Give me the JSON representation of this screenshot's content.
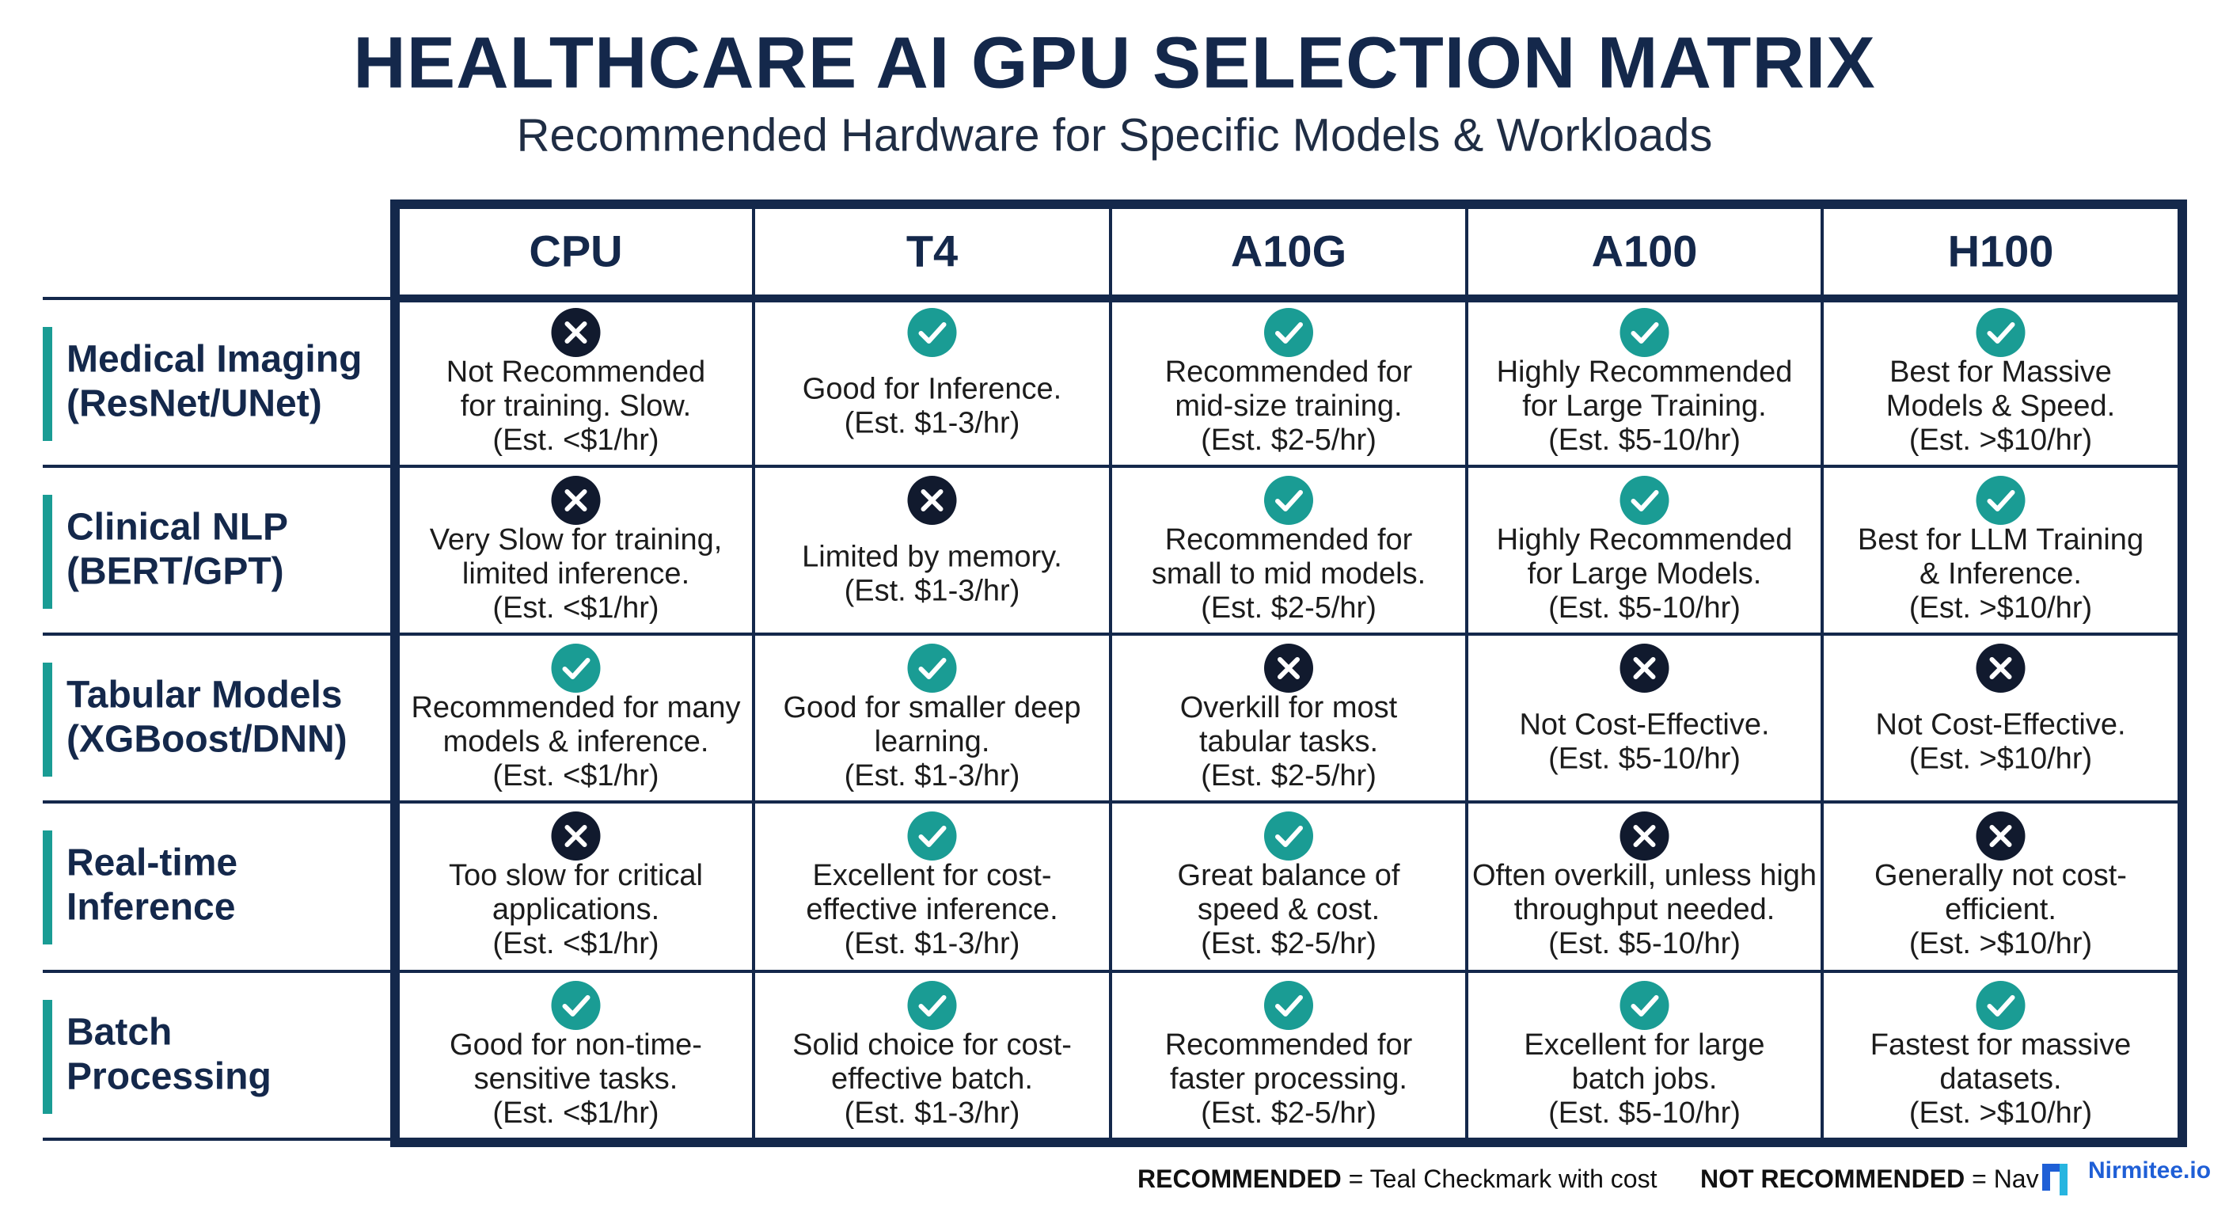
{
  "header": {
    "title": "HEALTHCARE AI GPU SELECTION MATRIX",
    "subtitle": "Recommended Hardware for Specific Models & Workloads"
  },
  "table": {
    "columns": [
      "CPU",
      "T4",
      "A10G",
      "A100",
      "H100"
    ],
    "rows": [
      {
        "label": [
          "Medical Imaging",
          "(ResNet/UNet)"
        ],
        "cells": [
          {
            "status": "not_recommended",
            "text": [
              "Not Recommended",
              "for training. Slow.",
              "(Est. <$1/hr)"
            ]
          },
          {
            "status": "recommended",
            "text": [
              "Good for Inference.",
              "(Est. $1-3/hr)"
            ]
          },
          {
            "status": "recommended",
            "text": [
              "Recommended for",
              "mid-size training.",
              "(Est. $2-5/hr)"
            ]
          },
          {
            "status": "recommended",
            "text": [
              "Highly Recommended",
              "for Large Training.",
              "(Est. $5-10/hr)"
            ]
          },
          {
            "status": "recommended",
            "text": [
              "Best for Massive",
              "Models & Speed.",
              "(Est. >$10/hr)"
            ]
          }
        ]
      },
      {
        "label": [
          "Clinical NLP",
          "(BERT/GPT)"
        ],
        "cells": [
          {
            "status": "not_recommended",
            "text": [
              "Very Slow for training,",
              "limited inference.",
              "(Est. <$1/hr)"
            ]
          },
          {
            "status": "not_recommended",
            "text": [
              "Limited by memory.",
              "(Est. $1-3/hr)"
            ]
          },
          {
            "status": "recommended",
            "text": [
              "Recommended for",
              "small to mid models.",
              "(Est. $2-5/hr)"
            ]
          },
          {
            "status": "recommended",
            "text": [
              "Highly Recommended",
              "for Large Models.",
              "(Est. $5-10/hr)"
            ]
          },
          {
            "status": "recommended",
            "text": [
              "Best for LLM Training",
              "& Inference.",
              "(Est. >$10/hr)"
            ]
          }
        ]
      },
      {
        "label": [
          "Tabular Models",
          "(XGBoost/DNN)"
        ],
        "cells": [
          {
            "status": "recommended",
            "text": [
              "Recommended for many",
              "models & inference.",
              "(Est. <$1/hr)"
            ]
          },
          {
            "status": "recommended",
            "text": [
              "Good for smaller deep",
              "learning.",
              "(Est. $1-3/hr)"
            ]
          },
          {
            "status": "not_recommended",
            "text": [
              "Overkill for most",
              "tabular tasks.",
              "(Est. $2-5/hr)"
            ]
          },
          {
            "status": "not_recommended",
            "text": [
              "Not Cost-Effective.",
              "(Est. $5-10/hr)"
            ]
          },
          {
            "status": "not_recommended",
            "text": [
              "Not Cost-Effective.",
              "(Est. >$10/hr)"
            ]
          }
        ]
      },
      {
        "label": [
          "Real-time",
          "Inference"
        ],
        "cells": [
          {
            "status": "not_recommended",
            "text": [
              "Too slow for critical",
              "applications.",
              "(Est. <$1/hr)"
            ]
          },
          {
            "status": "recommended",
            "text": [
              "Excellent for cost-",
              "effective inference.",
              "(Est. $1-3/hr)"
            ]
          },
          {
            "status": "recommended",
            "text": [
              "Great balance of",
              "speed & cost.",
              "(Est. $2-5/hr)"
            ]
          },
          {
            "status": "not_recommended",
            "text": [
              "Often overkill, unless high",
              "throughput needed.",
              "(Est. $5-10/hr)"
            ]
          },
          {
            "status": "not_recommended",
            "text": [
              "Generally not cost-",
              "efficient.",
              "(Est. >$10/hr)"
            ]
          }
        ]
      },
      {
        "label": [
          "Batch",
          "Processing"
        ],
        "cells": [
          {
            "status": "recommended",
            "text": [
              "Good for non-time-",
              "sensitive tasks.",
              "(Est. <$1/hr)"
            ]
          },
          {
            "status": "recommended",
            "text": [
              "Solid choice for cost-",
              "effective batch.",
              "(Est. $1-3/hr)"
            ]
          },
          {
            "status": "recommended",
            "text": [
              "Recommended for",
              "faster processing.",
              "(Est. $2-5/hr)"
            ]
          },
          {
            "status": "recommended",
            "text": [
              "Excellent for large",
              "batch jobs.",
              "(Est. $5-10/hr)"
            ]
          },
          {
            "status": "recommended",
            "text": [
              "Fastest for massive",
              "datasets.",
              "(Est. >$10/hr)"
            ]
          }
        ]
      }
    ]
  },
  "footer": {
    "legend": [
      {
        "key": "RECOMMENDED",
        "text": "= Teal Checkmark with cost"
      },
      {
        "key": "NOT RECOMMENDED",
        "text": "= Nav"
      }
    ],
    "brand": "Nirmitee.io"
  }
}
